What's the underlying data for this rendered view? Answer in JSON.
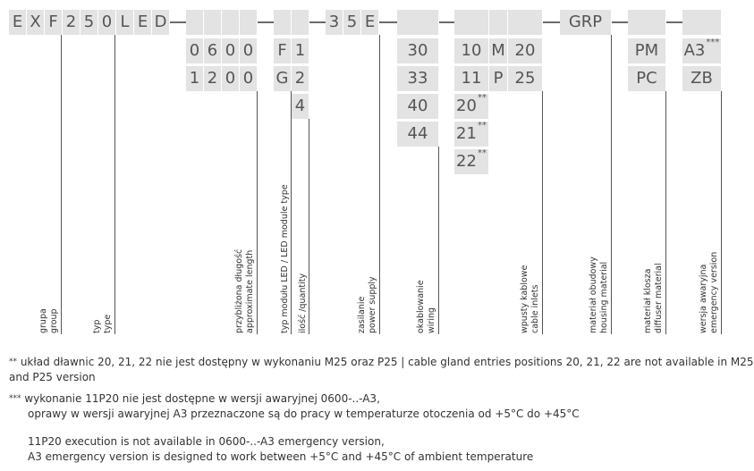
{
  "code_prefix": [
    "E",
    "X",
    "F",
    "2",
    "5",
    "0",
    "L",
    "E",
    "D"
  ],
  "code_mid": [
    "3",
    "5",
    "E"
  ],
  "code_grp": "GRP",
  "length_options": [
    [
      "0",
      "6",
      "0",
      "0"
    ],
    [
      "1",
      "2",
      "0",
      "0"
    ]
  ],
  "module_options": [
    [
      "F",
      "1"
    ],
    [
      "G",
      "2"
    ],
    [
      "",
      "4"
    ]
  ],
  "wiring_options": [
    "30",
    "33",
    "40",
    "44"
  ],
  "inlet_options": [
    {
      "code": "10",
      "letter": "M",
      "value": "20"
    },
    {
      "code": "11",
      "letter": "P",
      "value": "25"
    },
    {
      "code": "20",
      "stars": "**"
    },
    {
      "code": "21",
      "stars": "**"
    },
    {
      "code": "22",
      "stars": "**"
    }
  ],
  "diffuser_options": [
    "PM",
    "PC"
  ],
  "emergency_options": [
    {
      "code": "A3",
      "stars": "***"
    },
    {
      "code": "ZB",
      "stars": ""
    }
  ],
  "labels": {
    "group": [
      "grupa",
      "group"
    ],
    "type": [
      "typ",
      "type"
    ],
    "length": [
      "przybliżona długość",
      "approximate length"
    ],
    "module": [
      "typ modułu LED / LED module type"
    ],
    "quantity": [
      "ilość /quantity"
    ],
    "power": [
      "zasilanie",
      "power supply"
    ],
    "wiring": [
      "okablowanie",
      "wiring"
    ],
    "inlets": [
      "wpusty kablowe",
      "cable inlets"
    ],
    "housing": [
      "materiał obudowy",
      "housing material"
    ],
    "diffuser": [
      "materiał klosza",
      "diffuser material"
    ],
    "emergency": [
      "wersja awaryjna",
      "emergency version"
    ]
  },
  "notes": {
    "n1_marker": "**",
    "n1_line1": "układ dławnic 20, 21, 22 nie jest dostępny w wykonaniu M25 oraz P25 | cable gland entries positions 20, 21, 22 are not available in M25",
    "n1_line2": "and P25 version",
    "n2_marker": "***",
    "n2_line1": "wykonanie 11P20 nie jest dostępne w wersji awaryjnej 0600-..-A3,",
    "n2_line2": "oprawy w wersji awaryjnej A3 przeznaczone są do pracy w temperaturze otoczenia od +5°C do +45°C",
    "n2_line3": "11P20 execution is not available in 0600-..-A3 emergency version,",
    "n2_line4": "A3 emergency version is designed to work between +5°C and +45°C of ambient temperature"
  }
}
